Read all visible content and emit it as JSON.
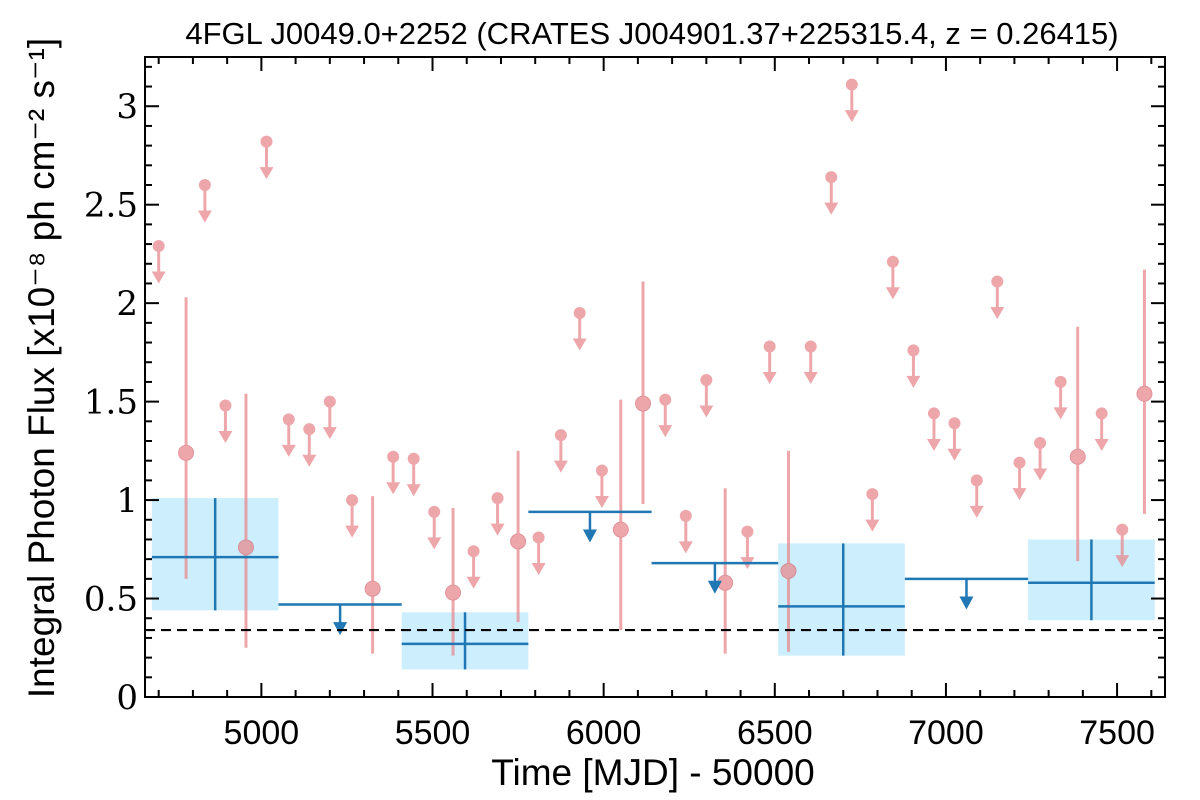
{
  "chart_data": {
    "type": "scatter",
    "title": "4FGL J0049.0+2252 (CRATES J004901.37+225315.4, z = 0.26415)",
    "xlabel": "Time [MJD] - 50000",
    "ylabel": "Integral Photon Flux [x10⁻⁸ ph cm⁻² s⁻¹]",
    "xlim": [
      4660,
      7640
    ],
    "ylim": [
      0,
      3.25
    ],
    "x_ticks": [
      5000,
      5500,
      6000,
      6500,
      7000,
      7500
    ],
    "x_tick_labels": [
      "5000",
      "5500",
      "6000",
      "6500",
      "7000",
      "7500"
    ],
    "y_ticks": [
      0,
      0.5,
      1,
      1.5,
      2,
      2.5,
      3
    ],
    "y_tick_labels": [
      "0",
      "0.5",
      "1",
      "1.5",
      "2",
      "2.5",
      "3"
    ],
    "grid": false,
    "baseline": 0.34,
    "colors": {
      "fine": "#e88a8f",
      "coarse": "#1f77b4",
      "coarse_fill": "#cdeefc",
      "baseline": "#000000"
    },
    "series": [
      {
        "binning": "fine",
        "detections": [
          {
            "x": 4780,
            "y": 1.24,
            "ylo": 0.6,
            "yhi": 2.03
          },
          {
            "x": 4955,
            "y": 0.76,
            "ylo": 0.25,
            "yhi": 1.54
          },
          {
            "x": 5325,
            "y": 0.55,
            "ylo": 0.22,
            "yhi": 1.02
          },
          {
            "x": 5560,
            "y": 0.53,
            "ylo": 0.21,
            "yhi": 0.96
          },
          {
            "x": 5750,
            "y": 0.79,
            "ylo": 0.38,
            "yhi": 1.25
          },
          {
            "x": 6050,
            "y": 0.85,
            "ylo": 0.34,
            "yhi": 1.51
          },
          {
            "x": 6115,
            "y": 1.49,
            "ylo": 0.98,
            "yhi": 2.11
          },
          {
            "x": 6355,
            "y": 0.58,
            "ylo": 0.22,
            "yhi": 1.06
          },
          {
            "x": 6540,
            "y": 0.64,
            "ylo": 0.23,
            "yhi": 1.25
          },
          {
            "x": 7385,
            "y": 1.22,
            "ylo": 0.69,
            "yhi": 1.88
          },
          {
            "x": 7580,
            "y": 1.54,
            "ylo": 0.93,
            "yhi": 2.17
          }
        ],
        "upper_limits": [
          {
            "x": 4700,
            "y": 2.29
          },
          {
            "x": 4835,
            "y": 2.6
          },
          {
            "x": 4895,
            "y": 1.48
          },
          {
            "x": 5015,
            "y": 2.82
          },
          {
            "x": 5080,
            "y": 1.41
          },
          {
            "x": 5140,
            "y": 1.36
          },
          {
            "x": 5200,
            "y": 1.5
          },
          {
            "x": 5265,
            "y": 1.0
          },
          {
            "x": 5385,
            "y": 1.22
          },
          {
            "x": 5445,
            "y": 1.21
          },
          {
            "x": 5505,
            "y": 0.94
          },
          {
            "x": 5620,
            "y": 0.74
          },
          {
            "x": 5690,
            "y": 1.01
          },
          {
            "x": 5810,
            "y": 0.81
          },
          {
            "x": 5875,
            "y": 1.33
          },
          {
            "x": 5930,
            "y": 1.95
          },
          {
            "x": 5995,
            "y": 1.15
          },
          {
            "x": 6180,
            "y": 1.51
          },
          {
            "x": 6240,
            "y": 0.92
          },
          {
            "x": 6300,
            "y": 1.61
          },
          {
            "x": 6420,
            "y": 0.84
          },
          {
            "x": 6485,
            "y": 1.78
          },
          {
            "x": 6605,
            "y": 1.78
          },
          {
            "x": 6665,
            "y": 2.64
          },
          {
            "x": 6725,
            "y": 3.11
          },
          {
            "x": 6785,
            "y": 1.03
          },
          {
            "x": 6845,
            "y": 2.21
          },
          {
            "x": 6905,
            "y": 1.76
          },
          {
            "x": 6965,
            "y": 1.44
          },
          {
            "x": 7025,
            "y": 1.39
          },
          {
            "x": 7090,
            "y": 1.1
          },
          {
            "x": 7150,
            "y": 2.11
          },
          {
            "x": 7215,
            "y": 1.19
          },
          {
            "x": 7275,
            "y": 1.29
          },
          {
            "x": 7335,
            "y": 1.6
          },
          {
            "x": 7455,
            "y": 1.44
          },
          {
            "x": 7515,
            "y": 0.85
          }
        ]
      },
      {
        "binning": "coarse",
        "detections": [
          {
            "x": 4865,
            "xlo": 4680,
            "xhi": 5050,
            "y": 0.71,
            "ylo": 0.44,
            "yhi": 1.01
          },
          {
            "x": 5595,
            "xlo": 5410,
            "xhi": 5780,
            "y": 0.27,
            "ylo": 0.14,
            "yhi": 0.43
          },
          {
            "x": 6700,
            "xlo": 6510,
            "xhi": 6880,
            "y": 0.46,
            "ylo": 0.21,
            "yhi": 0.78
          },
          {
            "x": 7425,
            "xlo": 7240,
            "xhi": 7610,
            "y": 0.58,
            "ylo": 0.39,
            "yhi": 0.8
          }
        ],
        "upper_limits": [
          {
            "x": 5230,
            "xlo": 5050,
            "xhi": 5410,
            "y": 0.47
          },
          {
            "x": 5960,
            "xlo": 5780,
            "xhi": 6140,
            "y": 0.94
          },
          {
            "x": 6325,
            "xlo": 6140,
            "xhi": 6510,
            "y": 0.68
          },
          {
            "x": 7060,
            "xlo": 6880,
            "xhi": 7240,
            "y": 0.6
          }
        ]
      }
    ]
  }
}
